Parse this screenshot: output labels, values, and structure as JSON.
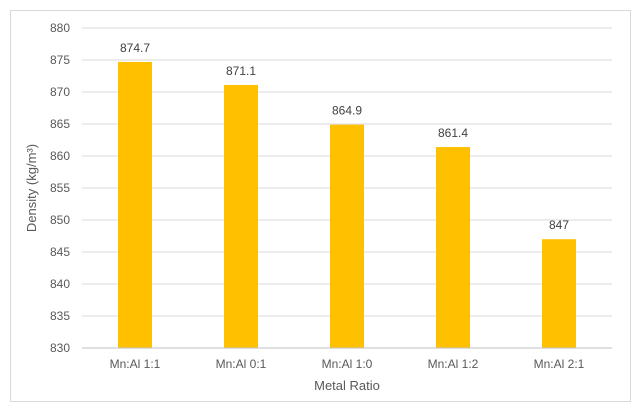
{
  "chart_data": {
    "type": "bar",
    "categories": [
      "Mn:Al 1:1",
      "Mn:Al 0:1",
      "Mn:Al 1:0",
      "Mn:Al 1:2",
      "Mn:Al 2:1"
    ],
    "values": [
      874.7,
      871.1,
      864.9,
      861.4,
      847
    ],
    "data_labels": [
      "874.7",
      "871.1",
      "864.9",
      "861.4",
      "847"
    ],
    "xlabel": "Metal Ratio",
    "ylabel": "Density (kg/m³)",
    "ylim": [
      830,
      880
    ],
    "yticks": [
      "830",
      "835",
      "840",
      "845",
      "850",
      "855",
      "860",
      "865",
      "870",
      "875",
      "880"
    ],
    "grid": true,
    "legend": "none",
    "bar_color": "#FFC000"
  }
}
